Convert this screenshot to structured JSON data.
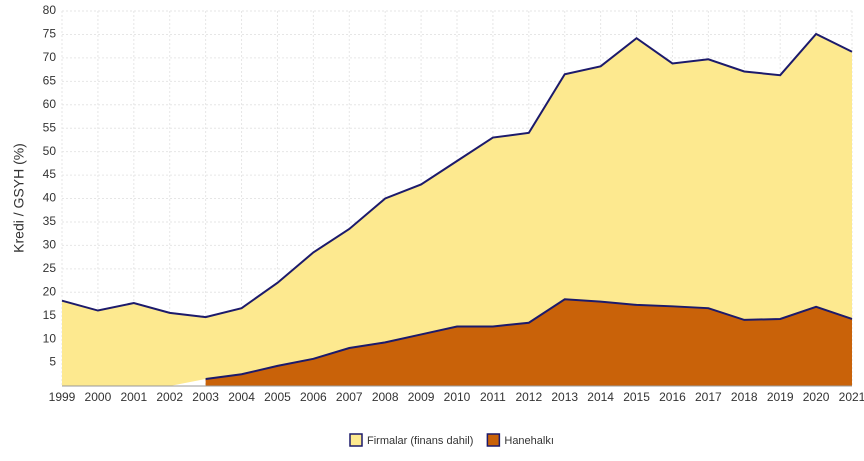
{
  "chart_data": {
    "type": "stacked-area",
    "y_label": "Kredi / GSYH (%)",
    "x": [
      "1999",
      "2000",
      "2001",
      "2002",
      "2003",
      "2004",
      "2005",
      "2006",
      "2007",
      "2008",
      "2009",
      "2010",
      "2011",
      "2012",
      "2013",
      "2014",
      "2015",
      "2016",
      "2017",
      "2018",
      "2019",
      "2020",
      "2021"
    ],
    "series": [
      {
        "name": "Firmalar (finans dahil)",
        "color": "#fde98f",
        "values": [
          18.2,
          16.1,
          17.7,
          15.6,
          13.2,
          14.1,
          17.7,
          22.7,
          25.4,
          30.7,
          32,
          35.3,
          40.3,
          40.5,
          48,
          50.2,
          56.9,
          51.8,
          53.1,
          53,
          52,
          58.2,
          57
        ]
      },
      {
        "name": "Hanehalkı",
        "color": "#c96209",
        "values": [
          null,
          null,
          null,
          null,
          1.5,
          2.5,
          4.3,
          5.8,
          8.1,
          9.3,
          11,
          12.7,
          12.7,
          13.5,
          18.5,
          18,
          17.3,
          17,
          16.6,
          14.1,
          14.3,
          16.9,
          14.3
        ]
      }
    ],
    "line_color": "#1c1a6b",
    "ylim": [
      0,
      80
    ],
    "yticks": [
      5,
      10,
      15,
      20,
      25,
      30,
      35,
      40,
      45,
      50,
      55,
      60,
      65,
      70,
      75,
      80
    ],
    "grid": true,
    "legend": "bottom"
  }
}
